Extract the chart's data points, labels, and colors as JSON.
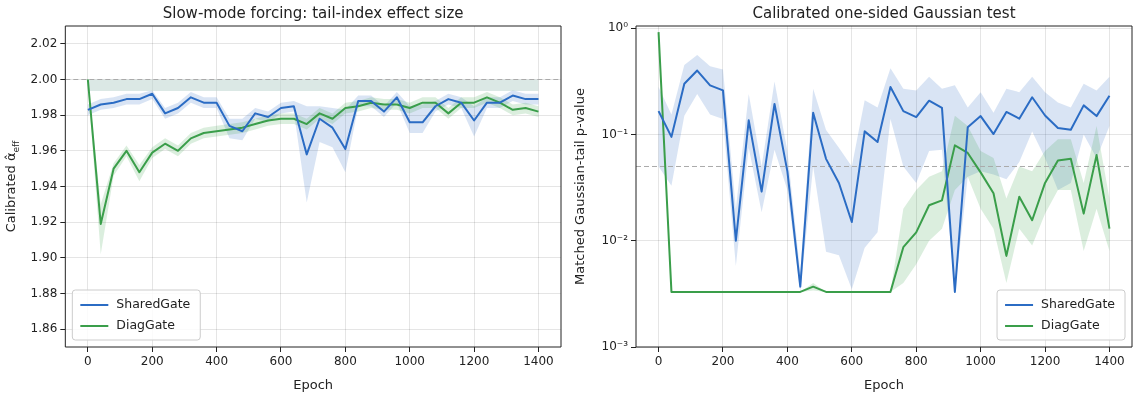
{
  "chart_data": [
    {
      "type": "line",
      "title": "Slow-mode forcing: tail-index effect size",
      "xlabel": "Epoch",
      "ylabel": "Calibrated α̂$_{eff}$",
      "x": [
        0,
        40,
        80,
        120,
        160,
        200,
        240,
        280,
        320,
        360,
        400,
        440,
        480,
        520,
        560,
        600,
        640,
        680,
        720,
        760,
        800,
        840,
        880,
        920,
        960,
        1000,
        1040,
        1080,
        1120,
        1160,
        1200,
        1240,
        1280,
        1320,
        1360,
        1400
      ],
      "series": [
        {
          "name": "SharedGate",
          "color": "#2b6cc4",
          "values": [
            1.983,
            1.986,
            1.987,
            1.989,
            1.989,
            1.992,
            1.981,
            1.984,
            1.99,
            1.987,
            1.987,
            1.974,
            1.971,
            1.981,
            1.979,
            1.984,
            1.985,
            1.958,
            1.978,
            1.973,
            1.961,
            1.988,
            1.988,
            1.982,
            1.99,
            1.976,
            1.976,
            1.985,
            1.989,
            1.987,
            1.977,
            1.987,
            1.987,
            1.991,
            1.989,
            1.989
          ],
          "lower": [
            1.98,
            1.983,
            1.984,
            1.986,
            1.986,
            1.989,
            1.978,
            1.981,
            1.987,
            1.984,
            1.984,
            1.967,
            1.966,
            1.978,
            1.976,
            1.981,
            1.982,
            1.931,
            1.965,
            1.962,
            1.948,
            1.985,
            1.985,
            1.979,
            1.987,
            1.97,
            1.97,
            1.982,
            1.986,
            1.984,
            1.968,
            1.984,
            1.984,
            1.988,
            1.986,
            1.986
          ],
          "upper": [
            1.986,
            1.989,
            1.99,
            1.992,
            1.992,
            1.994,
            1.984,
            1.987,
            1.993,
            1.99,
            1.99,
            1.978,
            1.978,
            1.984,
            1.982,
            1.987,
            1.988,
            1.985,
            1.985,
            1.984,
            1.983,
            1.991,
            1.991,
            1.985,
            1.993,
            1.985,
            1.986,
            1.988,
            1.992,
            1.99,
            1.985,
            1.99,
            1.99,
            1.994,
            1.992,
            1.992
          ]
        },
        {
          "name": "DiagGate",
          "color": "#3a9e4a",
          "values": [
            2.0,
            1.919,
            1.95,
            1.96,
            1.948,
            1.959,
            1.964,
            1.96,
            1.967,
            1.97,
            1.971,
            1.972,
            1.973,
            1.975,
            1.977,
            1.978,
            1.978,
            1.975,
            1.981,
            1.978,
            1.984,
            1.985,
            1.987,
            1.986,
            1.986,
            1.984,
            1.987,
            1.987,
            1.981,
            1.987,
            1.987,
            1.99,
            1.987,
            1.983,
            1.984,
            1.982
          ],
          "lower": [
            1.997,
            1.902,
            1.946,
            1.957,
            1.943,
            1.956,
            1.961,
            1.957,
            1.964,
            1.967,
            1.968,
            1.969,
            1.97,
            1.972,
            1.974,
            1.975,
            1.975,
            1.972,
            1.978,
            1.975,
            1.981,
            1.982,
            1.984,
            1.983,
            1.983,
            1.981,
            1.984,
            1.984,
            1.978,
            1.984,
            1.984,
            1.987,
            1.984,
            1.98,
            1.981,
            1.979
          ],
          "upper": [
            2.0,
            1.93,
            1.953,
            1.963,
            1.952,
            1.962,
            1.967,
            1.963,
            1.97,
            1.973,
            1.974,
            1.975,
            1.976,
            1.978,
            1.98,
            1.981,
            1.981,
            1.978,
            1.984,
            1.981,
            1.987,
            1.988,
            1.99,
            1.989,
            1.989,
            1.987,
            1.99,
            1.99,
            1.984,
            1.99,
            1.99,
            1.993,
            1.99,
            1.986,
            1.987,
            1.985
          ]
        }
      ],
      "xlim": [
        -70,
        1470
      ],
      "xticks": [
        0,
        200,
        400,
        600,
        800,
        1000,
        1200,
        1400
      ],
      "ylim": [
        1.85,
        2.03
      ],
      "yticks": [
        {
          "value": 1.86,
          "label": "1.86"
        },
        {
          "value": 1.88,
          "label": "1.88"
        },
        {
          "value": 1.9,
          "label": "1.90"
        },
        {
          "value": 1.92,
          "label": "1.92"
        },
        {
          "value": 1.94,
          "label": "1.94"
        },
        {
          "value": 1.96,
          "label": "1.96"
        },
        {
          "value": 1.98,
          "label": "1.98"
        },
        {
          "value": 2.0,
          "label": "2.00"
        },
        {
          "value": 2.02,
          "label": "2.02"
        }
      ],
      "ref_lines": [
        {
          "axis": "y",
          "value": 2.0,
          "color": "#aaaaaa",
          "line_style": "dashed"
        }
      ],
      "bands": [
        {
          "axis": "y",
          "from": 1.9935,
          "to": 2.0,
          "color": "#b8d2cc"
        }
      ],
      "grid": true,
      "legend": "bottom left",
      "marker": "none",
      "line_style": "solid"
    },
    {
      "type": "line",
      "title": "Calibrated one-sided Gaussian test",
      "xlabel": "Epoch",
      "ylabel": "Matched Gaussian-tail p-value",
      "x": [
        0,
        40,
        80,
        120,
        160,
        200,
        240,
        280,
        320,
        360,
        400,
        440,
        480,
        520,
        560,
        600,
        640,
        680,
        720,
        760,
        800,
        840,
        880,
        920,
        960,
        1000,
        1040,
        1080,
        1120,
        1160,
        1200,
        1240,
        1280,
        1320,
        1360,
        1400
      ],
      "series": [
        {
          "name": "SharedGate",
          "color": "#2b6cc4",
          "values": [
            0.166,
            0.095,
            0.3,
            0.4,
            0.29,
            0.26,
            0.01,
            0.136,
            0.029,
            0.194,
            0.045,
            0.0037,
            0.16,
            0.059,
            0.035,
            0.015,
            0.107,
            0.085,
            0.28,
            0.166,
            0.146,
            0.208,
            0.178,
            0.0033,
            0.117,
            0.149,
            0.101,
            0.163,
            0.141,
            0.224,
            0.151,
            0.115,
            0.111,
            0.188,
            0.149,
            0.232
          ],
          "lower": [
            0.05,
            0.033,
            0.15,
            0.24,
            0.154,
            0.14,
            0.0058,
            0.075,
            0.0185,
            0.072,
            0.03,
            0.0033,
            0.05,
            0.0079,
            0.0073,
            0.0035,
            0.0086,
            0.012,
            0.14,
            0.05,
            0.035,
            0.07,
            0.072,
            0.0033,
            0.04,
            0.045,
            0.042,
            0.038,
            0.055,
            0.107,
            0.06,
            0.03,
            0.035,
            0.1,
            0.06,
            0.12
          ],
          "upper": [
            0.28,
            0.154,
            0.45,
            0.56,
            0.44,
            0.41,
            0.02,
            0.24,
            0.05,
            0.316,
            0.07,
            0.005,
            0.27,
            0.11,
            0.075,
            0.05,
            0.21,
            0.18,
            0.42,
            0.27,
            0.26,
            0.35,
            0.27,
            0.29,
            0.18,
            0.25,
            0.16,
            0.27,
            0.25,
            0.35,
            0.25,
            0.2,
            0.18,
            0.3,
            0.26,
            0.35
          ]
        },
        {
          "name": "DiagGate",
          "color": "#3a9e4a",
          "values": [
            0.92,
            0.0033,
            0.0033,
            0.0033,
            0.0033,
            0.0033,
            0.0033,
            0.0033,
            0.0033,
            0.0033,
            0.0033,
            0.0033,
            0.0037,
            0.0033,
            0.0033,
            0.0033,
            0.0033,
            0.0033,
            0.0033,
            0.0087,
            0.012,
            0.0216,
            0.024,
            0.079,
            0.067,
            0.044,
            0.028,
            0.0072,
            0.026,
            0.0156,
            0.035,
            0.057,
            0.059,
            0.018,
            0.064,
            0.013
          ],
          "lower": [
            0.9,
            0.0033,
            0.0033,
            0.0033,
            0.0033,
            0.0033,
            0.0033,
            0.0033,
            0.0033,
            0.0033,
            0.0033,
            0.0033,
            0.0034,
            0.0033,
            0.0033,
            0.0033,
            0.0033,
            0.0033,
            0.0033,
            0.004,
            0.006,
            0.01,
            0.013,
            0.03,
            0.04,
            0.02,
            0.013,
            0.004,
            0.013,
            0.009,
            0.018,
            0.03,
            0.03,
            0.008,
            0.02,
            0.008
          ],
          "upper": [
            0.95,
            0.0033,
            0.0033,
            0.0033,
            0.0033,
            0.0033,
            0.0033,
            0.0033,
            0.0033,
            0.0033,
            0.0033,
            0.0033,
            0.004,
            0.0033,
            0.0033,
            0.0033,
            0.0033,
            0.0033,
            0.0033,
            0.02,
            0.03,
            0.04,
            0.045,
            0.15,
            0.12,
            0.07,
            0.06,
            0.025,
            0.05,
            0.045,
            0.07,
            0.09,
            0.09,
            0.035,
            0.12,
            0.025
          ]
        }
      ],
      "xlim": [
        -70,
        1470
      ],
      "xticks": [
        0,
        200,
        400,
        600,
        800,
        1000,
        1200,
        1400
      ],
      "ylim": [
        0.001,
        1.05
      ],
      "yticks": [
        {
          "value": 0.001,
          "label": "10⁻³"
        },
        {
          "value": 0.01,
          "label": "10⁻²"
        },
        {
          "value": 0.1,
          "label": "10⁻¹"
        },
        {
          "value": 1,
          "label": "10⁰"
        }
      ],
      "log": "y",
      "ref_lines": [
        {
          "axis": "y",
          "value": 0.05,
          "color": "#aaaaaa",
          "line_style": "dashed"
        }
      ],
      "grid": true,
      "legend": "bottom right",
      "marker": "none",
      "line_style": "solid"
    }
  ]
}
